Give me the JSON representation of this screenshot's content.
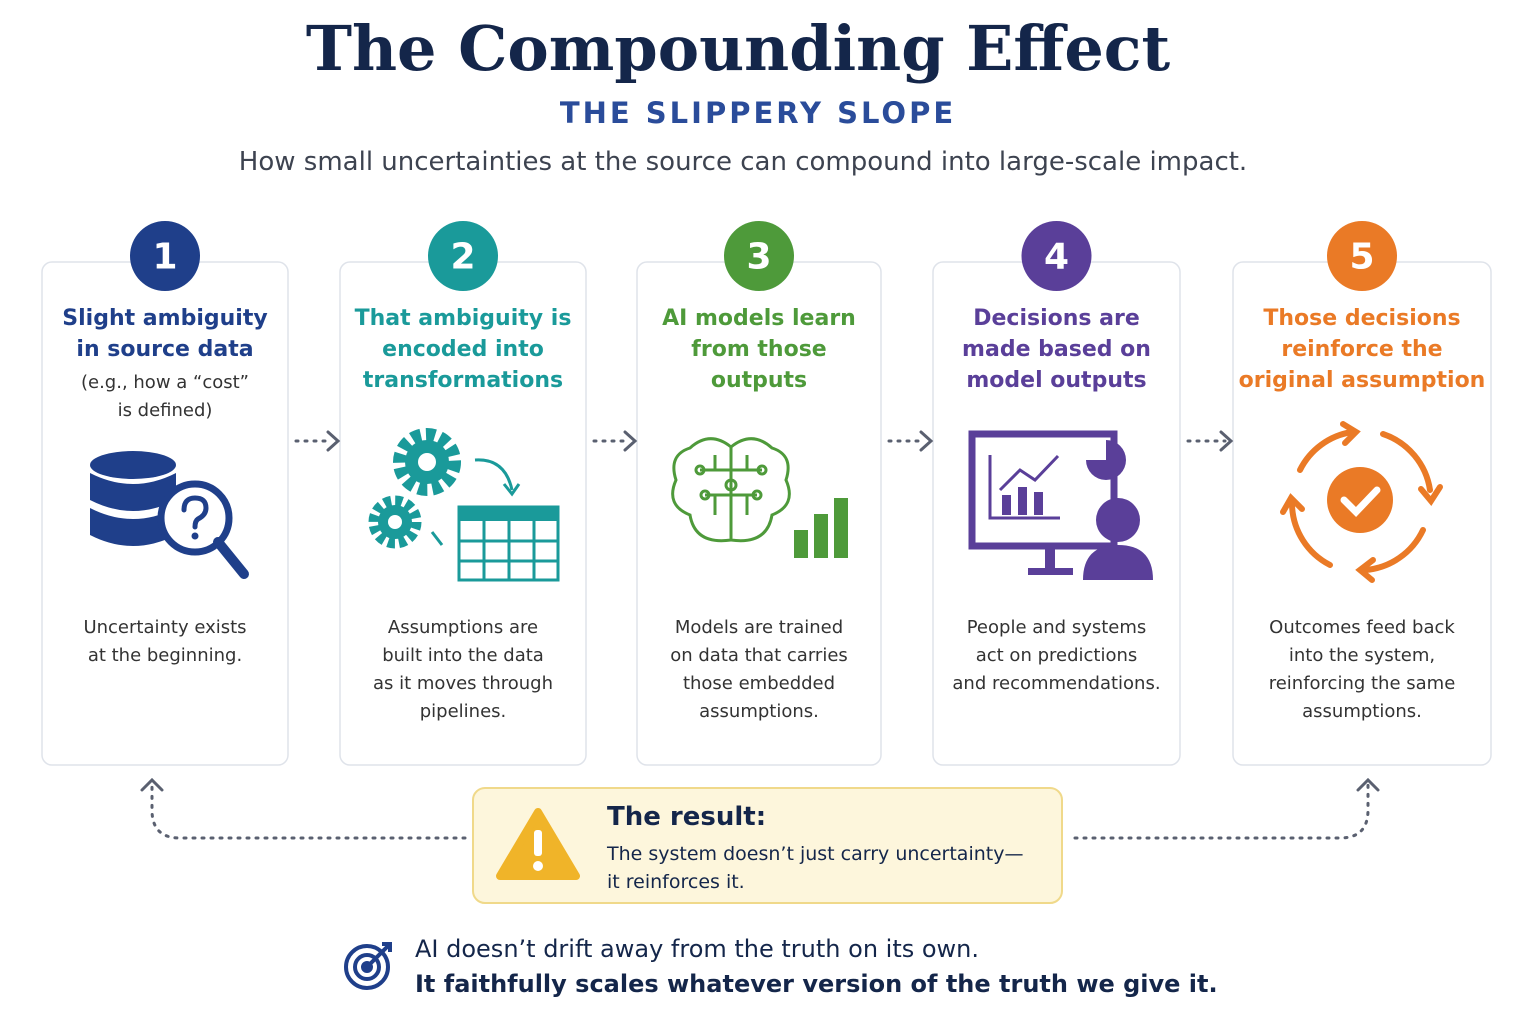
{
  "header": {
    "title": "The Compounding Effect",
    "subtitle": "THE SLIPPERY SLOPE",
    "description": "How small uncertainties at the source can compound into large-scale impact."
  },
  "steps": [
    {
      "number": "1",
      "title": [
        "Slight ambiguity",
        "in source data"
      ],
      "note": [
        "(e.g., how a “cost”",
        "is defined)"
      ],
      "body": [
        "Uncertainty exists",
        "at the beginning."
      ]
    },
    {
      "number": "2",
      "title": [
        "That ambiguity is",
        "encoded into",
        "transformations"
      ],
      "body": [
        "Assumptions are",
        "built into the data",
        "as it moves through",
        "pipelines."
      ]
    },
    {
      "number": "3",
      "title": [
        "AI models learn",
        "from those",
        "outputs"
      ],
      "body": [
        "Models are trained",
        "on data that carries",
        "those embedded",
        "assumptions."
      ]
    },
    {
      "number": "4",
      "title": [
        "Decisions are",
        "made based on",
        "model outputs"
      ],
      "body": [
        "People and systems",
        "act on predictions",
        "and recommendations."
      ]
    },
    {
      "number": "5",
      "title": [
        "Those decisions",
        "reinforce the",
        "original assumption"
      ],
      "body": [
        "Outcomes feed back",
        "into the system,",
        "reinforcing the same",
        "assumptions."
      ]
    }
  ],
  "result": {
    "title": "The result:",
    "text": [
      "The system doesn’t just carry uncertainty—",
      "it reinforces it."
    ]
  },
  "footer": [
    "AI doesn’t drift away from the truth on its own.",
    "It faithfully scales whatever version of the truth we give it."
  ]
}
